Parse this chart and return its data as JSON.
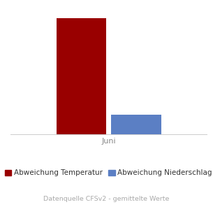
{
  "month": "Juni",
  "temp_value": 5.0,
  "precip_value": 0.85,
  "bar_width": 0.28,
  "temp_color": "#990000",
  "precip_color": "#5b7fc4",
  "legend_temp": "Abweichung Temperatur",
  "legend_precip": "Abweichung Niederschlag",
  "footnote": "Datenquelle CFSv2 - gemittelte Werte",
  "background_color": "#ffffff",
  "ylim": [
    0,
    5.5
  ],
  "legend_fontsize": 7.5,
  "footnote_fontsize": 6.8,
  "tick_fontsize": 8,
  "tick_color": "#888888"
}
